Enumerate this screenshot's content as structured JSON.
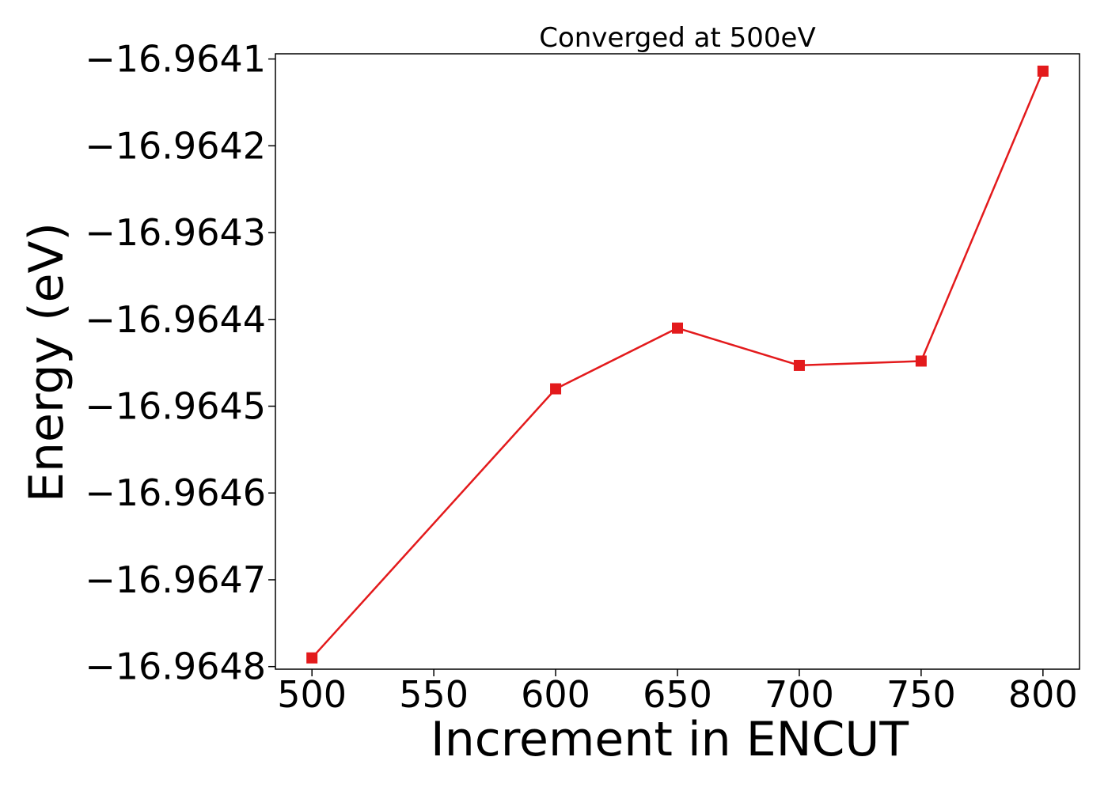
{
  "chart_data": {
    "type": "line",
    "title": "Converged at 500eV",
    "xlabel": "Increment in ENCUT",
    "ylabel": "Energy (eV)",
    "x": [
      500,
      600,
      650,
      700,
      750,
      800
    ],
    "series": [
      {
        "values": [
          -16.96479,
          -16.96448,
          -16.96441,
          -16.964453,
          -16.964448,
          -16.964114
        ],
        "color": "#e31a1c",
        "marker": "square"
      }
    ],
    "xlim": [
      485,
      815
    ],
    "ylim": [
      -16.964803,
      -16.964094
    ],
    "xticks": [
      500,
      550,
      600,
      650,
      700,
      750,
      800
    ],
    "xtick_labels": [
      "500",
      "550",
      "600",
      "650",
      "700",
      "750",
      "800"
    ],
    "yticks": [
      -16.9648,
      -16.9647,
      -16.9646,
      -16.9645,
      -16.9644,
      -16.9643,
      -16.9642,
      -16.9641
    ],
    "ytick_labels": [
      "−16.9648",
      "−16.9647",
      "−16.9646",
      "−16.9645",
      "−16.9644",
      "−16.9643",
      "−16.9642",
      "−16.9641"
    ],
    "grid": false,
    "legend": "none"
  }
}
